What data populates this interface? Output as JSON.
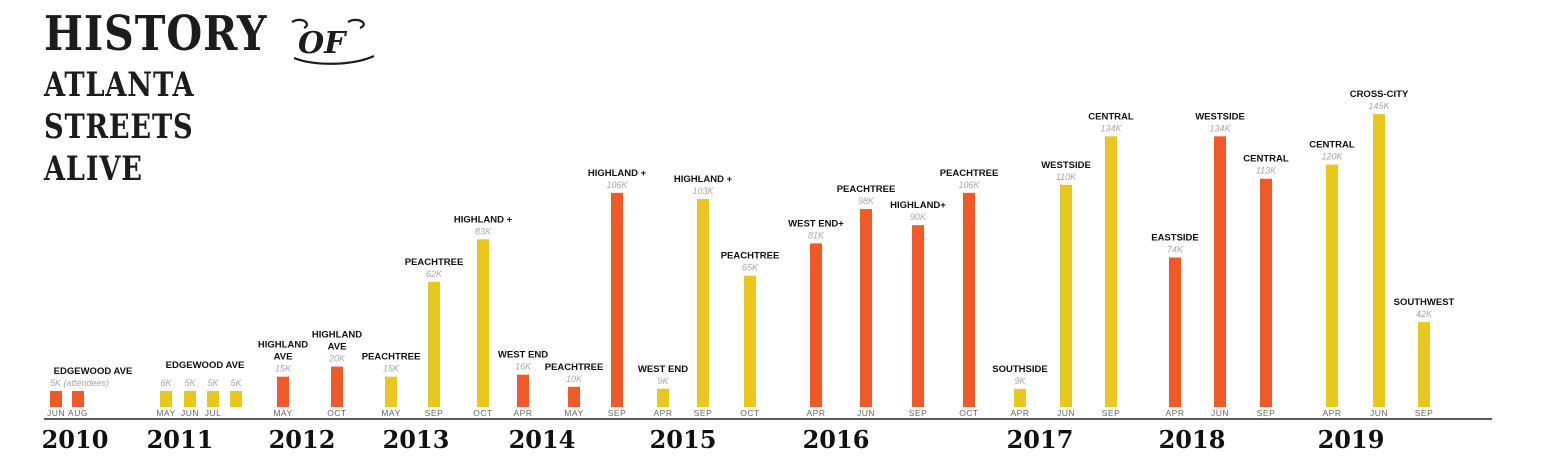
{
  "title": {
    "line1": "HISTORY",
    "of": "OF",
    "line2": "ATLANTA",
    "line3": "STREETS",
    "line4": "ALIVE"
  },
  "colors": {
    "orange": "#f05a28",
    "yellow": "#e8c81e",
    "axis": "#222222"
  },
  "chart_data": {
    "type": "bar",
    "value_unit": "attendees (thousands)",
    "years": [
      "2010",
      "2011",
      "2012",
      "2013",
      "2014",
      "2015",
      "2016",
      "2017",
      "2018",
      "2019"
    ],
    "events": [
      {
        "year": "2010",
        "month": "JUN",
        "value": 5,
        "value_label": "5K (attendees)",
        "route": "EDGEWOOD AVE",
        "color": "orange"
      },
      {
        "year": "2010",
        "month": "AUG",
        "value": 5,
        "value_label": "",
        "route": "",
        "color": "orange"
      },
      {
        "year": "2011",
        "month": "MAY",
        "value": 6,
        "value_label": "6K",
        "route": "EDGEWOOD AVE",
        "color": "yellow"
      },
      {
        "year": "2011",
        "month": "JUN",
        "value": 5,
        "value_label": "5K",
        "route": "",
        "color": "yellow"
      },
      {
        "year": "2011",
        "month": "JUL",
        "value": 5,
        "value_label": "5K",
        "route": "",
        "color": "yellow"
      },
      {
        "year": "2011",
        "month": "",
        "value": 5,
        "value_label": "5K",
        "route": "",
        "color": "yellow"
      },
      {
        "year": "2012",
        "month": "MAY",
        "value": 15,
        "value_label": "15K",
        "route": "HIGHLAND AVE",
        "color": "orange"
      },
      {
        "year": "2012",
        "month": "OCT",
        "value": 20,
        "value_label": "20K",
        "route": "HIGHLAND AVE",
        "color": "orange"
      },
      {
        "year": "2013",
        "month": "MAY",
        "value": 15,
        "value_label": "15K",
        "route": "PEACHTREE",
        "color": "yellow"
      },
      {
        "year": "2013",
        "month": "SEP",
        "value": 62,
        "value_label": "62K",
        "route": "PEACHTREE",
        "color": "yellow"
      },
      {
        "year": "2013",
        "month": "OCT",
        "value": 83,
        "value_label": "83K",
        "route": "HIGHLAND +",
        "color": "yellow"
      },
      {
        "year": "2014",
        "month": "APR",
        "value": 16,
        "value_label": "16K",
        "route": "WEST END",
        "color": "orange"
      },
      {
        "year": "2014",
        "month": "MAY",
        "value": 10,
        "value_label": "10K",
        "route": "PEACHTREE",
        "color": "orange"
      },
      {
        "year": "2014",
        "month": "SEP",
        "value": 106,
        "value_label": "106K",
        "route": "HIGHLAND +",
        "color": "orange"
      },
      {
        "year": "2015",
        "month": "APR",
        "value": 9,
        "value_label": "9K",
        "route": "WEST END",
        "color": "yellow"
      },
      {
        "year": "2015",
        "month": "SEP",
        "value": 103,
        "value_label": "103K",
        "route": "HIGHLAND +",
        "color": "yellow"
      },
      {
        "year": "2015",
        "month": "OCT",
        "value": 65,
        "value_label": "65K",
        "route": "PEACHTREE",
        "color": "yellow"
      },
      {
        "year": "2016",
        "month": "APR",
        "value": 81,
        "value_label": "81K",
        "route": "WEST END+",
        "color": "orange"
      },
      {
        "year": "2016",
        "month": "JUN",
        "value": 98,
        "value_label": "98K",
        "route": "PEACHTREE",
        "color": "orange"
      },
      {
        "year": "2016",
        "month": "SEP",
        "value": 90,
        "value_label": "90K",
        "route": "HIGHLAND+",
        "color": "orange"
      },
      {
        "year": "2016",
        "month": "OCT",
        "value": 106,
        "value_label": "106K",
        "route": "PEACHTREE",
        "color": "orange"
      },
      {
        "year": "2017",
        "month": "APR",
        "value": 9,
        "value_label": "9K",
        "route": "SOUTHSIDE",
        "color": "yellow"
      },
      {
        "year": "2017",
        "month": "JUN",
        "value": 110,
        "value_label": "110K",
        "route": "WESTSIDE",
        "color": "yellow"
      },
      {
        "year": "2017",
        "month": "SEP",
        "value": 134,
        "value_label": "134K",
        "route": "CENTRAL",
        "color": "yellow"
      },
      {
        "year": "2018",
        "month": "APR",
        "value": 74,
        "value_label": "74K",
        "route": "EASTSIDE",
        "color": "orange"
      },
      {
        "year": "2018",
        "month": "JUN",
        "value": 134,
        "value_label": "134K",
        "route": "WESTSIDE",
        "color": "orange"
      },
      {
        "year": "2018",
        "month": "SEP",
        "value": 113,
        "value_label": "113K",
        "route": "CENTRAL",
        "color": "orange"
      },
      {
        "year": "2019",
        "month": "APR",
        "value": 120,
        "value_label": "120K",
        "route": "CENTRAL",
        "color": "yellow"
      },
      {
        "year": "2019",
        "month": "JUN",
        "value": 145,
        "value_label": "145K",
        "route": "CROSS-CITY",
        "color": "yellow"
      },
      {
        "year": "2019",
        "month": "SEP",
        "value": 42,
        "value_label": "42K",
        "route": "SOUTHWEST",
        "color": "yellow"
      }
    ]
  }
}
